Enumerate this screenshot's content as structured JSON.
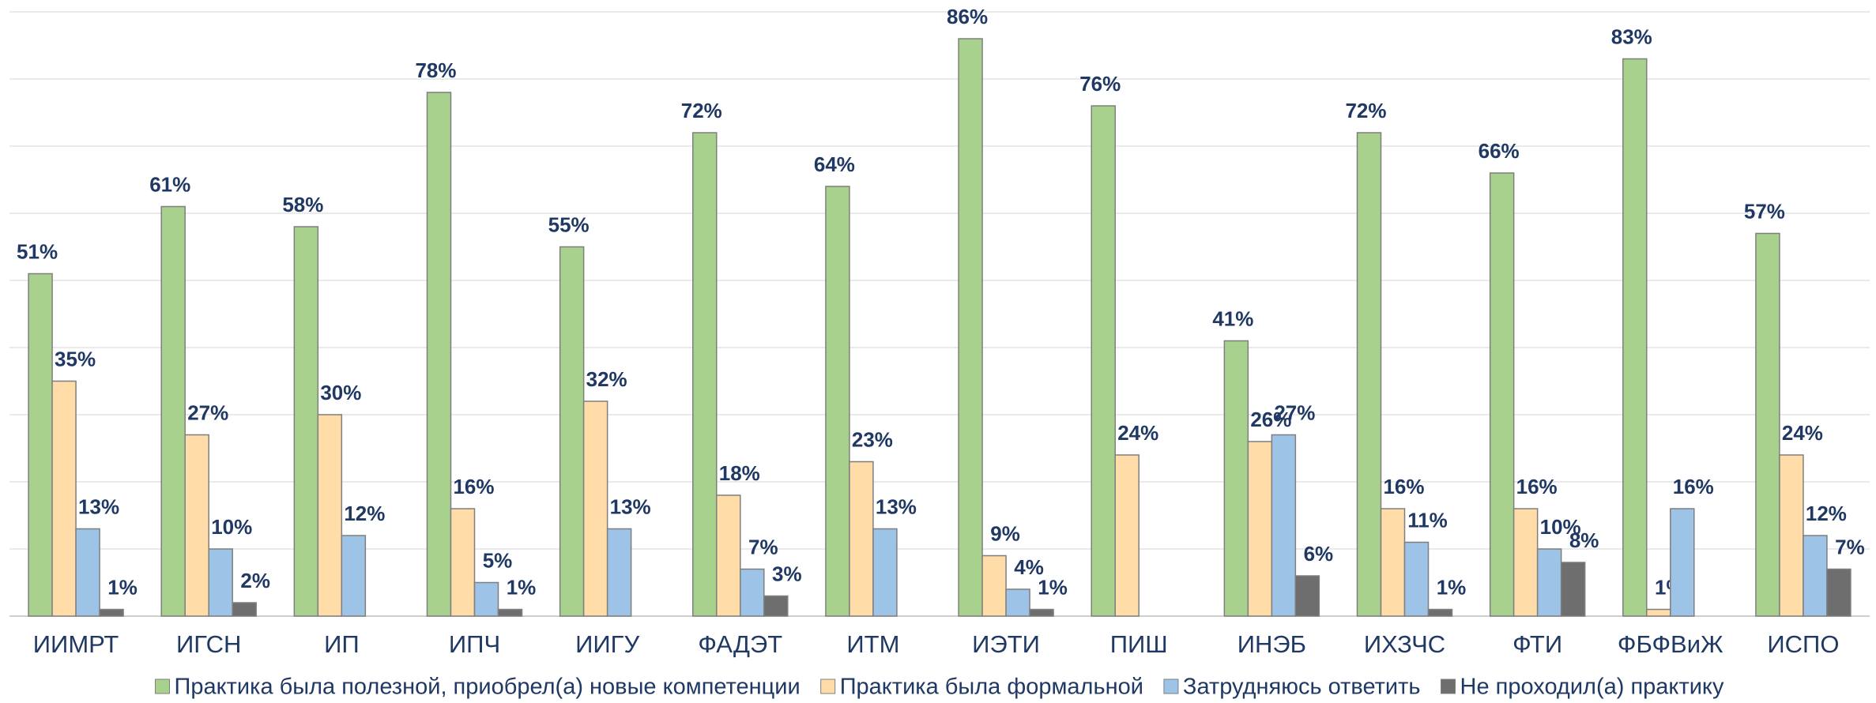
{
  "chart_data": {
    "type": "bar",
    "categories": [
      "ИИМРТ",
      "ИГСН",
      "ИП",
      "ИПЧ",
      "ИИГУ",
      "ФАДЭТ",
      "ИТМ",
      "ИЭТИ",
      "ПИШ",
      "ИНЭБ",
      "ИХЗЧС",
      "ФТИ",
      "ФБФВиЖ",
      "ИСПО"
    ],
    "series": [
      {
        "name": "Практика была полезной, приобрел(а) новые компетенции",
        "color": "#a9d18e",
        "values": [
          51,
          61,
          58,
          78,
          55,
          72,
          64,
          86,
          76,
          41,
          72,
          66,
          83,
          57
        ],
        "value_labels": [
          "51%",
          "61%",
          "58%",
          "78%",
          "55%",
          "72%",
          "64%",
          "86%",
          "76%",
          "41%",
          "72%",
          "66%",
          "83%",
          "57%"
        ]
      },
      {
        "name": "Практика была формальной",
        "color": "#ffdca8",
        "values": [
          35,
          27,
          30,
          16,
          32,
          18,
          23,
          9,
          24,
          26,
          16,
          16,
          1,
          24
        ],
        "value_labels": [
          "35%",
          "27%",
          "30%",
          "16%",
          "32%",
          "18%",
          "23%",
          "9%",
          "24%",
          "26%",
          "16%",
          "16%",
          "1%",
          "24%"
        ]
      },
      {
        "name": "Затрудняюсь ответить",
        "color": "#9dc3e6",
        "values": [
          13,
          10,
          12,
          5,
          13,
          7,
          13,
          4,
          null,
          27,
          11,
          10,
          16,
          12
        ],
        "value_labels": [
          "13%",
          "10%",
          "12%",
          "5%",
          "13%",
          "7%",
          "13%",
          "4%",
          null,
          "27%",
          "11%",
          "10%",
          "16%",
          "12%"
        ]
      },
      {
        "name": "Не проходил(а) практику",
        "color": "#6e6e6e",
        "values": [
          1,
          2,
          null,
          1,
          null,
          3,
          null,
          1,
          null,
          6,
          1,
          8,
          null,
          7
        ],
        "value_labels": [
          "1%",
          "2%",
          null,
          "1%",
          null,
          "3%",
          null,
          "1%",
          null,
          "6%",
          "1%",
          "8%",
          null,
          "7%"
        ]
      }
    ],
    "ylim": [
      0,
      90
    ],
    "yticks": [
      0,
      10,
      20,
      30,
      40,
      50,
      60,
      70,
      80,
      90
    ],
    "grid": true,
    "legend": "bottom"
  }
}
